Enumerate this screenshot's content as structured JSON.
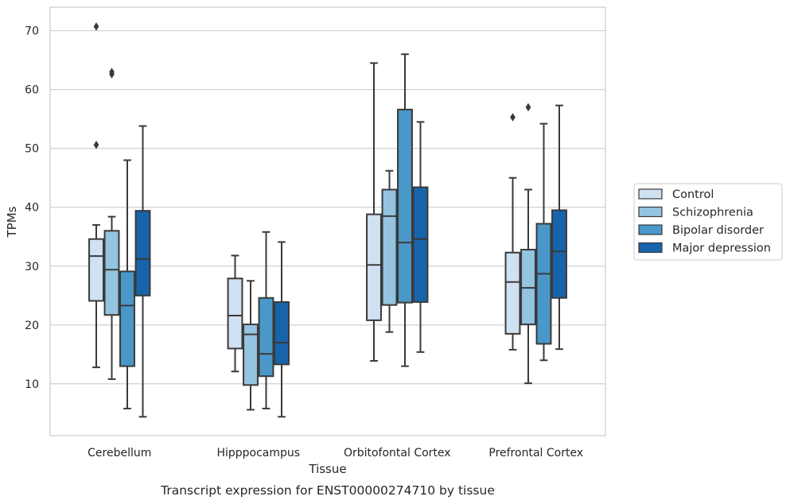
{
  "chart_data": {
    "type": "box",
    "title": "",
    "caption": "Transcript expression for ENST00000274710 by tissue",
    "xlabel": "Tissue",
    "ylabel": "TPMs",
    "ylim": [
      1.2,
      74
    ],
    "yticks": [
      10,
      20,
      30,
      40,
      50,
      60,
      70
    ],
    "grid": "horizontal",
    "legend_position": "right",
    "categories": [
      "Cerebellum",
      "Hipppocampus",
      "Orbitofontal Cortex",
      "Prefrontal Cortex"
    ],
    "series": [
      {
        "name": "Control",
        "color": "#d0e1f2",
        "boxes": [
          {
            "whisker_low": 12.8,
            "q1": 24.1,
            "median": 31.7,
            "q3": 34.6,
            "whisker_high": 37.0,
            "outliers": [
              50.6,
              70.7
            ]
          },
          {
            "whisker_low": 12.1,
            "q1": 16.0,
            "median": 21.6,
            "q3": 27.9,
            "whisker_high": 31.8,
            "outliers": []
          },
          {
            "whisker_low": 13.9,
            "q1": 20.8,
            "median": 30.2,
            "q3": 38.8,
            "whisker_high": 64.5,
            "outliers": []
          },
          {
            "whisker_low": 15.8,
            "q1": 18.5,
            "median": 27.3,
            "q3": 32.3,
            "whisker_high": 45.0,
            "outliers": [
              55.3
            ]
          }
        ]
      },
      {
        "name": "Schizophrenia",
        "color": "#94c4df",
        "boxes": [
          {
            "whisker_low": 10.8,
            "q1": 21.7,
            "median": 29.4,
            "q3": 36.0,
            "whisker_high": 38.4,
            "outliers": [
              62.6,
              63.0
            ]
          },
          {
            "whisker_low": 5.6,
            "q1": 9.8,
            "median": 18.4,
            "q3": 20.1,
            "whisker_high": 27.5,
            "outliers": []
          },
          {
            "whisker_low": 18.8,
            "q1": 23.4,
            "median": 38.5,
            "q3": 43.0,
            "whisker_high": 46.2,
            "outliers": []
          },
          {
            "whisker_low": 10.1,
            "q1": 20.1,
            "median": 26.3,
            "q3": 32.8,
            "whisker_high": 43.0,
            "outliers": [
              57.0
            ]
          }
        ]
      },
      {
        "name": "Bipolar disorder",
        "color": "#4a98c9",
        "boxes": [
          {
            "whisker_low": 5.8,
            "q1": 13.0,
            "median": 23.3,
            "q3": 29.1,
            "whisker_high": 48.0,
            "outliers": []
          },
          {
            "whisker_low": 5.8,
            "q1": 11.3,
            "median": 15.1,
            "q3": 24.6,
            "whisker_high": 35.8,
            "outliers": []
          },
          {
            "whisker_low": 13.0,
            "q1": 23.8,
            "median": 34.0,
            "q3": 56.6,
            "whisker_high": 66.0,
            "outliers": []
          },
          {
            "whisker_low": 14.0,
            "q1": 16.8,
            "median": 28.7,
            "q3": 37.2,
            "whisker_high": 54.2,
            "outliers": []
          }
        ]
      },
      {
        "name": "Major depression",
        "color": "#1764ab",
        "boxes": [
          {
            "whisker_low": 4.4,
            "q1": 25.0,
            "median": 31.2,
            "q3": 39.4,
            "whisker_high": 53.8,
            "outliers": []
          },
          {
            "whisker_low": 4.4,
            "q1": 13.3,
            "median": 17.0,
            "q3": 23.9,
            "whisker_high": 34.1,
            "outliers": []
          },
          {
            "whisker_low": 15.4,
            "q1": 23.9,
            "median": 34.6,
            "q3": 43.4,
            "whisker_high": 54.5,
            "outliers": []
          },
          {
            "whisker_low": 15.9,
            "q1": 24.6,
            "median": 32.5,
            "q3": 39.5,
            "whisker_high": 57.3,
            "outliers": []
          }
        ]
      }
    ]
  }
}
